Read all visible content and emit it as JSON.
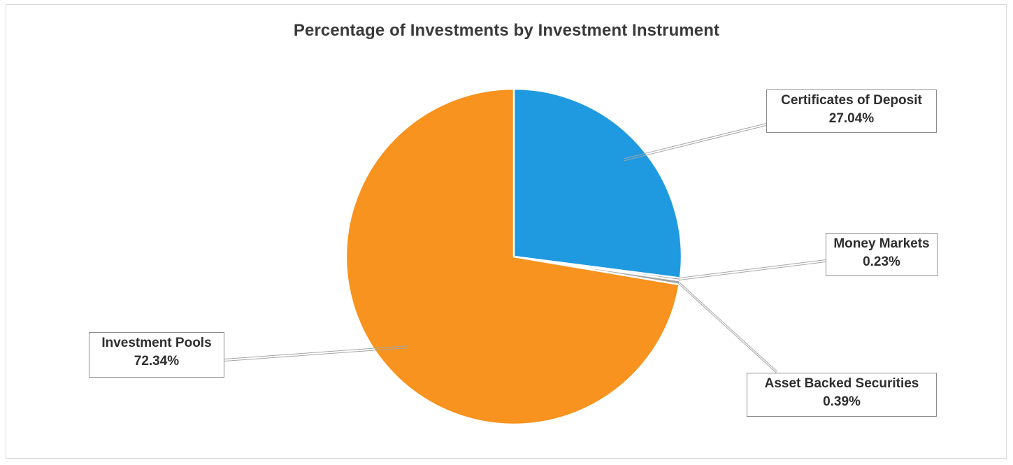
{
  "chart_data": {
    "type": "pie",
    "title": "Percentage of Investments by Investment Instrument",
    "slices": [
      {
        "label": "Certificates of Deposit",
        "value": 27.04,
        "display": "27.04%",
        "color": "#1f9ae0"
      },
      {
        "label": "Money Markets",
        "value": 0.23,
        "display": "0.23%",
        "color": "#7f7f7f"
      },
      {
        "label": "Asset Backed Securities",
        "value": 0.39,
        "display": "0.39%",
        "color": "#a5a5a5"
      },
      {
        "label": "Investment Pools",
        "value": 72.34,
        "display": "72.34%",
        "color": "#f7931e"
      }
    ],
    "start_angle": "12 o'clock",
    "direction": "clockwise",
    "data_labels": "callouts with leader lines"
  }
}
